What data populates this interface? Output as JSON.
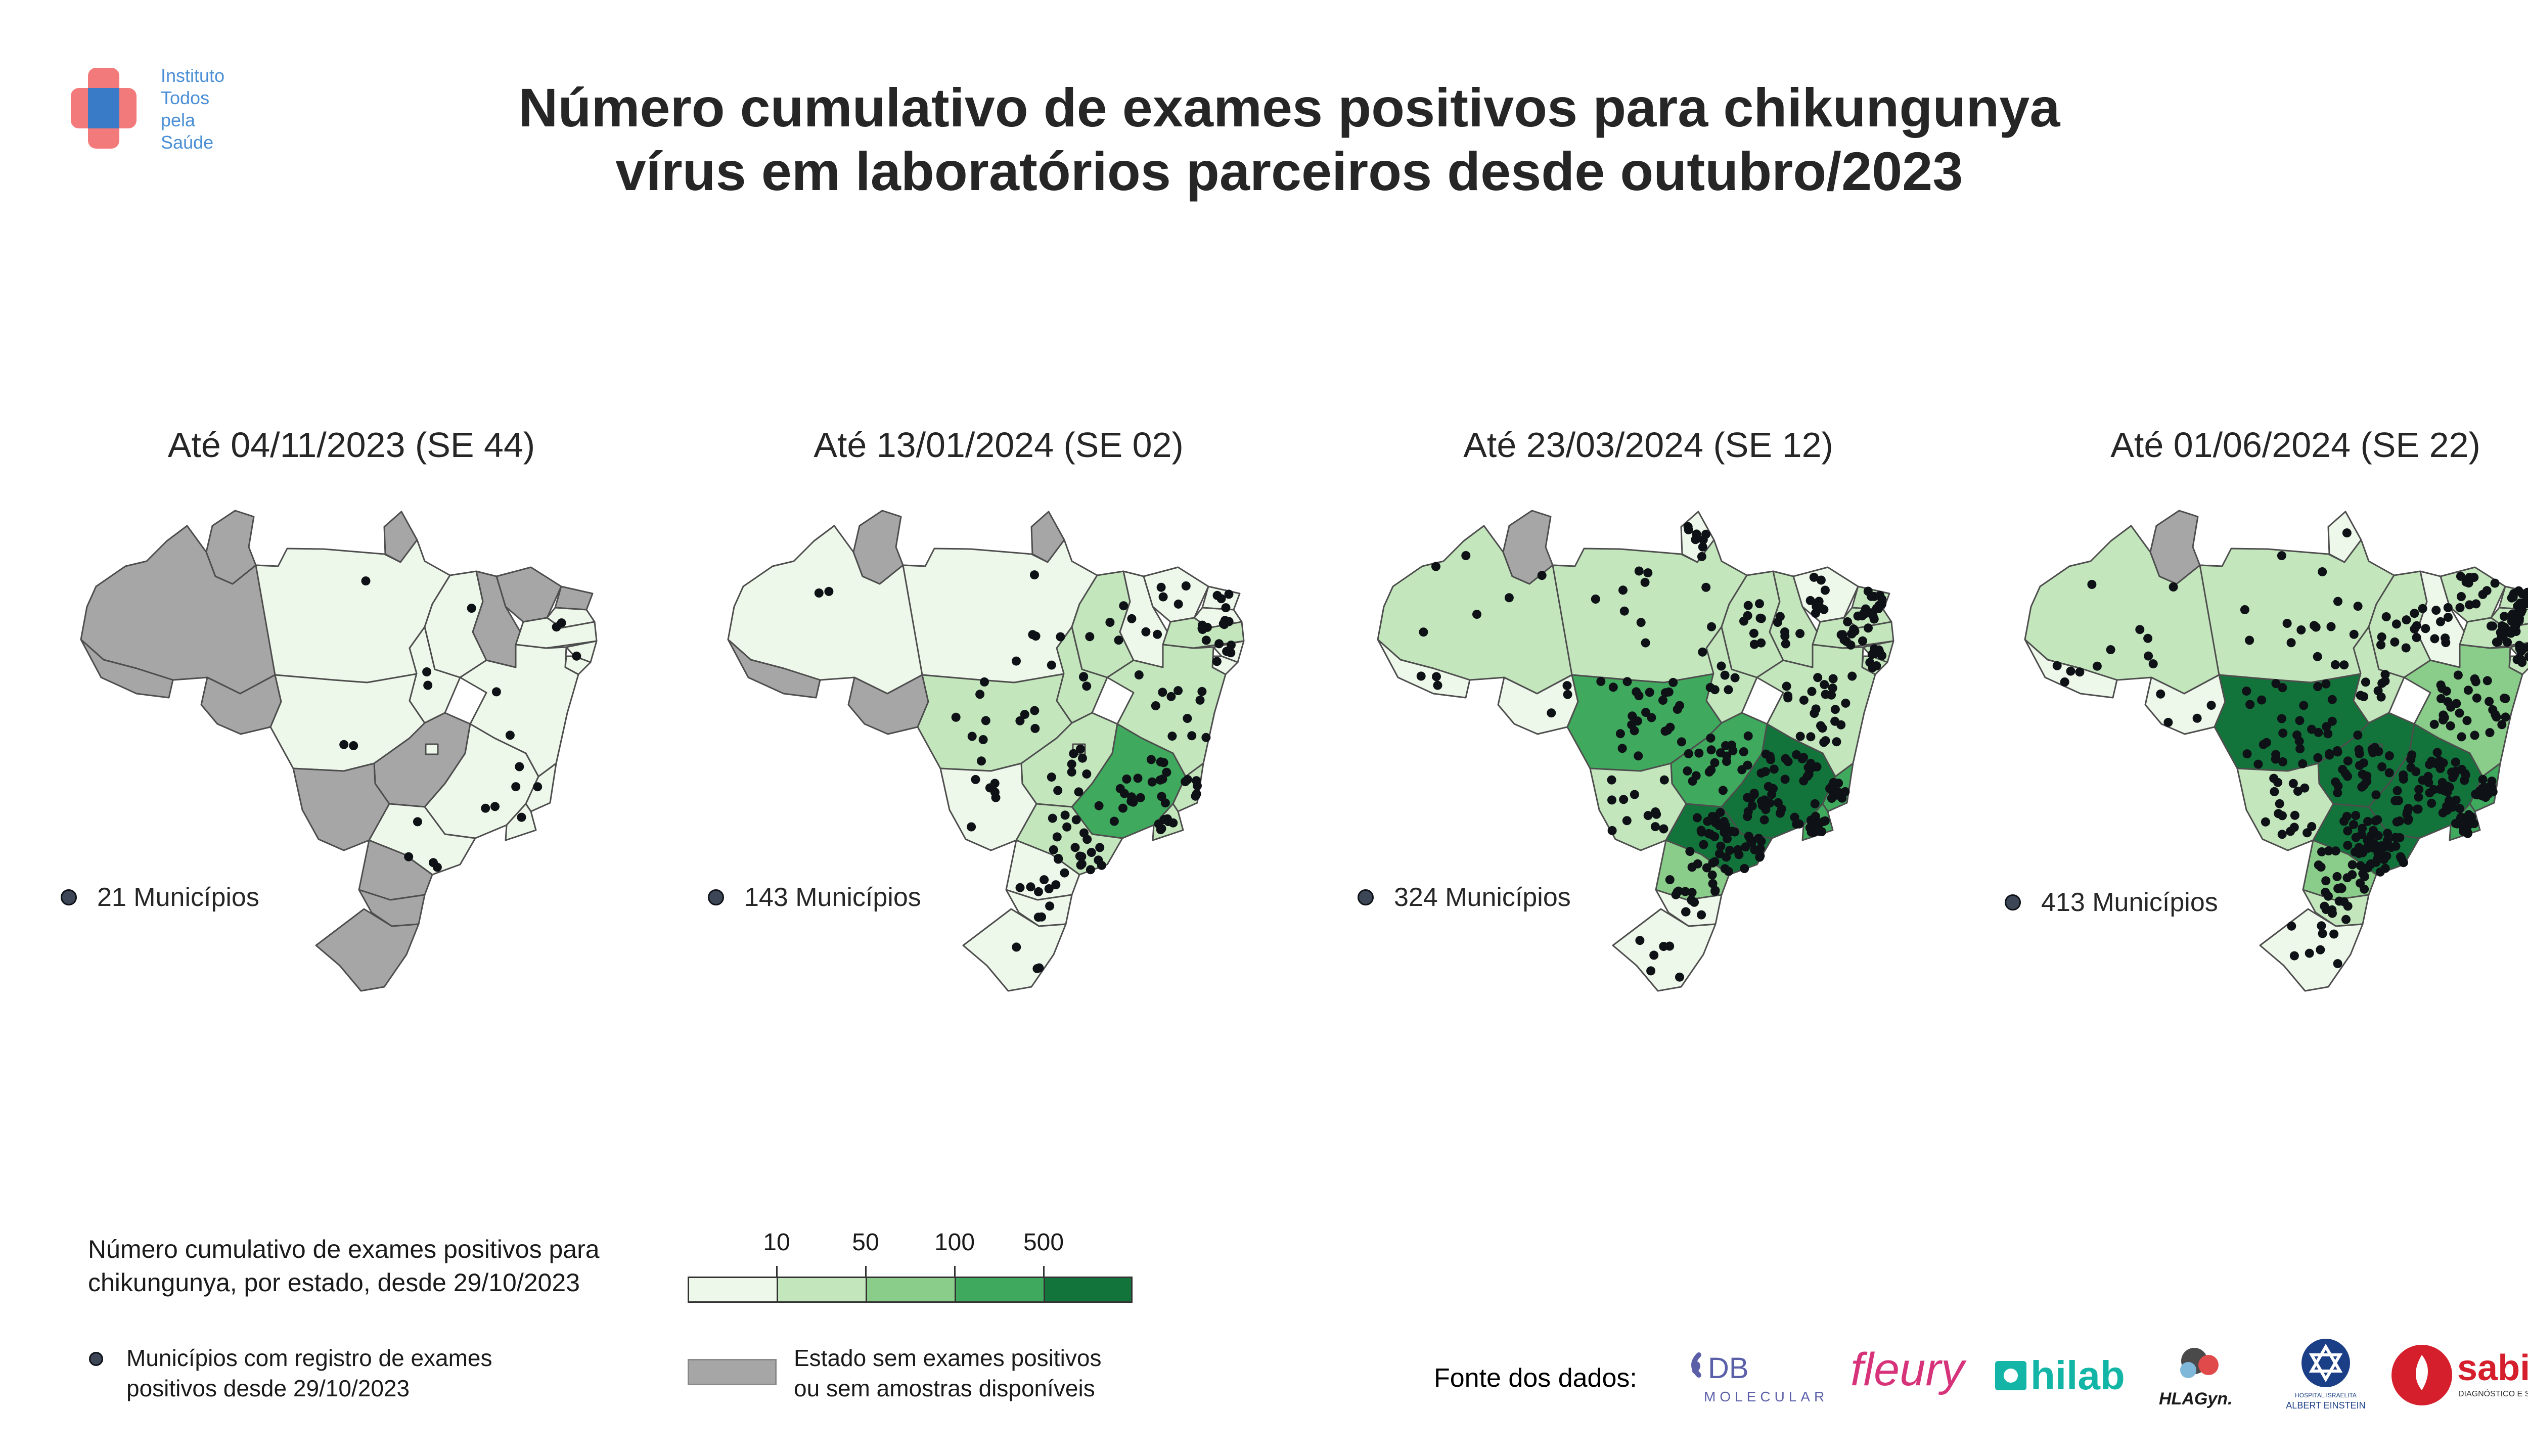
{
  "brand": {
    "lines": [
      "Instituto",
      "Todos",
      "pela",
      "Saúde"
    ],
    "text_color": "#4a8fd6",
    "cross_colors": [
      "#f26b6b",
      "#3a7bc8"
    ]
  },
  "title": {
    "line1": "Número cumulativo de exames positivos para chikungunya",
    "line2": "vírus em laboratórios parceiros desde outubro/2023"
  },
  "palette": {
    "no_data": "#a6a6a6",
    "bins": [
      "#eef8ea",
      "#c4e6bd",
      "#8acc89",
      "#3fa95d",
      "#12743b"
    ],
    "dot": "#0e1116"
  },
  "panels": [
    {
      "title": "Até 04/11/2023 (SE 44)",
      "municipios_label": "21 Municípios",
      "municipios": 21
    },
    {
      "title": "Até 13/01/2024 (SE 02)",
      "municipios_label": "143 Municípios",
      "municipios": 143
    },
    {
      "title": "Até 23/03/2024 (SE 12)",
      "municipios_label": "324 Municípios",
      "municipios": 324
    },
    {
      "title": "Até 01/06/2024 (SE 22)",
      "municipios_label": "413 Municípios",
      "municipios": 413
    }
  ],
  "legend": {
    "title_line1": "Número cumulativo de exames positivos para",
    "title_line2": "chikungunya, por estado, desde 29/10/2023",
    "scale_ticks": [
      "10",
      "50",
      "100",
      "500"
    ],
    "municipios_line1": "Municípios com registro de exames",
    "municipios_line2": "positivos desde 29/10/2023",
    "no_data_line1": "Estado sem exames positivos",
    "no_data_line2": "ou sem amostras disponíveis"
  },
  "sources": {
    "label": "Fonte dos dados:",
    "db_main": "DB",
    "db_sub": "MOLECULAR",
    "fleury": "fleury",
    "hilab": "hilab",
    "hlagyn": "HLAGyn.",
    "einstein_sub1": "HOSPITAL ISRAELITA",
    "einstein_sub2": "ALBERT EINSTEIN",
    "sabin": "sabin",
    "sabin_sub": "DIAGNÓSTICO E SAÚDE"
  },
  "chart_data": {
    "type": "choropleth",
    "region": "Brasil (estados)",
    "metric": "Número cumulativo de exames positivos para chikungunya, por estado, desde 29/10/2023",
    "bin_edges": [
      10,
      50,
      100,
      500
    ],
    "bins_unit": "exames positivos",
    "category_no_data": "Estado sem exames positivos ou sem amostras disponíveis",
    "maps": [
      {
        "period": "Até 04/11/2023 (SE 44)",
        "municipios": 21,
        "states": {
          "RR": "none",
          "AP": "none",
          "AM": "none",
          "AC": "none",
          "PA": 0,
          "MA": 0,
          "PI": "none",
          "CE": "none",
          "RN": "none",
          "PB": 0,
          "PE": 0,
          "AL": 0,
          "SE": 0,
          "BA": 0,
          "TO": 0,
          "RO": "none",
          "MT": 0,
          "GO": "none",
          "DF": 0,
          "MS": "none",
          "MG": 0,
          "ES": 0,
          "RJ": 0,
          "SP": 0,
          "PR": "none",
          "SC": "none",
          "RS": "none"
        }
      },
      {
        "period": "Até 13/01/2024 (SE 02)",
        "municipios": 143,
        "states": {
          "RR": "none",
          "AP": "none",
          "AM": 0,
          "AC": "none",
          "PA": 0,
          "MA": 1,
          "PI": 0,
          "CE": 0,
          "RN": 0,
          "PB": 0,
          "PE": 1,
          "AL": 0,
          "SE": 0,
          "BA": 1,
          "TO": 1,
          "RO": "none",
          "MT": 1,
          "GO": 1,
          "DF": 1,
          "MS": 0,
          "MG": 3,
          "ES": 1,
          "RJ": 1,
          "SP": 1,
          "PR": 0,
          "SC": 0,
          "RS": 0
        }
      },
      {
        "period": "Até 23/03/2024 (SE 12)",
        "municipios": 324,
        "states": {
          "RR": "none",
          "AP": 0,
          "AM": 1,
          "AC": 0,
          "PA": 1,
          "MA": 1,
          "PI": 1,
          "CE": 0,
          "RN": 1,
          "PB": 1,
          "PE": 1,
          "AL": 1,
          "SE": 1,
          "BA": 1,
          "TO": 1,
          "RO": 0,
          "MT": 3,
          "GO": 3,
          "DF": 3,
          "MS": 1,
          "MG": 4,
          "ES": 3,
          "RJ": 3,
          "SP": 4,
          "PR": 2,
          "SC": 0,
          "RS": 0
        }
      },
      {
        "period": "Até 01/06/2024 (SE 22)",
        "municipios": 413,
        "states": {
          "RR": "none",
          "AP": 0,
          "AM": 1,
          "AC": 0,
          "PA": 1,
          "MA": 1,
          "PI": 0,
          "CE": 1,
          "RN": 1,
          "PB": 1,
          "PE": 1,
          "AL": 1,
          "SE": 1,
          "BA": 2,
          "TO": 1,
          "RO": 0,
          "MT": 4,
          "GO": 4,
          "DF": 4,
          "MS": 1,
          "MG": 4,
          "ES": 3,
          "RJ": 3,
          "SP": 4,
          "PR": 2,
          "SC": 1,
          "RS": 0
        }
      }
    ],
    "bin_index_legend": [
      "0: <10",
      "1: 10–50",
      "2: 50–100",
      "3: 100–500",
      "4: >500"
    ]
  }
}
